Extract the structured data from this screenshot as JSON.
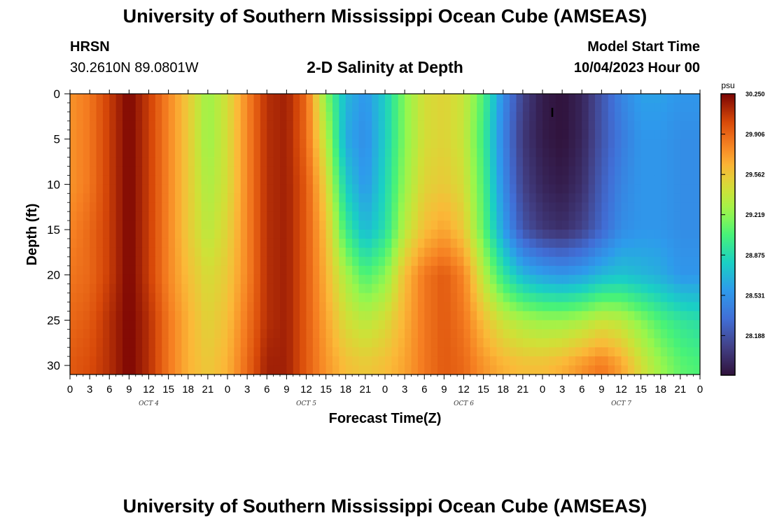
{
  "header": {
    "title": "University of Southern Mississippi Ocean Cube (AMSEAS)",
    "station": "HRSN",
    "coords": "30.2610N  89.0801W",
    "subtitle": "2-D Salinity at Depth",
    "start_label": "Model Start Time",
    "start_value": "10/04/2023 Hour 00"
  },
  "footer": {
    "title": "University of Southern Mississippi Ocean Cube (AMSEAS)"
  },
  "chart_data": {
    "type": "heatmap",
    "title": "2-D Salinity at Depth",
    "xlabel": "Forecast Time(Z)",
    "ylabel": "Depth (ft)",
    "xlim": [
      0,
      96
    ],
    "ylim": [
      0,
      31
    ],
    "x_ticks": [
      {
        "hour": 0,
        "label": "0"
      },
      {
        "hour": 3,
        "label": "3"
      },
      {
        "hour": 6,
        "label": "6"
      },
      {
        "hour": 9,
        "label": "9"
      },
      {
        "hour": 12,
        "label": "12"
      },
      {
        "hour": 15,
        "label": "15"
      },
      {
        "hour": 18,
        "label": "18"
      },
      {
        "hour": 21,
        "label": "21"
      },
      {
        "hour": 24,
        "label": "0"
      },
      {
        "hour": 27,
        "label": "3"
      },
      {
        "hour": 30,
        "label": "6"
      },
      {
        "hour": 33,
        "label": "9"
      },
      {
        "hour": 36,
        "label": "12"
      },
      {
        "hour": 39,
        "label": "15"
      },
      {
        "hour": 42,
        "label": "18"
      },
      {
        "hour": 45,
        "label": "21"
      },
      {
        "hour": 48,
        "label": "0"
      },
      {
        "hour": 51,
        "label": "3"
      },
      {
        "hour": 54,
        "label": "6"
      },
      {
        "hour": 57,
        "label": "9"
      },
      {
        "hour": 60,
        "label": "12"
      },
      {
        "hour": 63,
        "label": "15"
      },
      {
        "hour": 66,
        "label": "18"
      },
      {
        "hour": 69,
        "label": "21"
      },
      {
        "hour": 72,
        "label": "0"
      },
      {
        "hour": 75,
        "label": "3"
      },
      {
        "hour": 78,
        "label": "6"
      },
      {
        "hour": 81,
        "label": "9"
      },
      {
        "hour": 84,
        "label": "12"
      },
      {
        "hour": 87,
        "label": "15"
      },
      {
        "hour": 90,
        "label": "18"
      },
      {
        "hour": 93,
        "label": "21"
      },
      {
        "hour": 96,
        "label": "0"
      }
    ],
    "date_labels": [
      {
        "hour": 12,
        "label": "OCT 4"
      },
      {
        "hour": 36,
        "label": "OCT 5"
      },
      {
        "hour": 60,
        "label": "OCT 6"
      },
      {
        "hour": 84,
        "label": "OCT 7"
      }
    ],
    "y_ticks": [
      0,
      5,
      10,
      15,
      20,
      25,
      30
    ],
    "colorbar": {
      "unit": "psu",
      "min": 27.85,
      "max": 30.25,
      "ticks": [
        "30.250",
        "29.906",
        "29.562",
        "29.219",
        "28.875",
        "28.531",
        "28.188"
      ]
    },
    "marker": {
      "hour": 73.5,
      "depth": 2,
      "label": "I"
    },
    "rows_depth_ft": [
      0,
      5,
      10,
      15,
      20,
      25,
      30
    ],
    "columns_hour": [
      0,
      3,
      6,
      9,
      12,
      15,
      18,
      21,
      24,
      27,
      30,
      33,
      36,
      39,
      42,
      45,
      48,
      51,
      54,
      57,
      60,
      63,
      66,
      69,
      72,
      75,
      78,
      81,
      84,
      87,
      90,
      93,
      96
    ],
    "values": [
      [
        29.75,
        29.85,
        30.05,
        30.25,
        30.05,
        29.8,
        29.55,
        29.25,
        29.45,
        29.8,
        30.1,
        30.15,
        29.9,
        29.2,
        28.7,
        28.55,
        28.8,
        29.2,
        29.45,
        29.5,
        29.4,
        29.05,
        28.5,
        28.1,
        27.9,
        27.85,
        27.95,
        28.2,
        28.45,
        28.6,
        28.6,
        28.55,
        28.55
      ],
      [
        29.75,
        29.85,
        30.05,
        30.25,
        30.05,
        29.8,
        29.55,
        29.25,
        29.45,
        29.8,
        30.1,
        30.15,
        29.9,
        29.35,
        28.65,
        28.5,
        28.8,
        29.2,
        29.45,
        29.5,
        29.4,
        29.0,
        28.45,
        28.05,
        27.9,
        27.85,
        27.95,
        28.2,
        28.4,
        28.55,
        28.55,
        28.5,
        28.5
      ],
      [
        29.75,
        29.85,
        30.05,
        30.25,
        30.05,
        29.8,
        29.55,
        29.3,
        29.45,
        29.8,
        30.1,
        30.15,
        29.95,
        29.5,
        28.8,
        28.55,
        28.85,
        29.25,
        29.5,
        29.55,
        29.45,
        29.05,
        28.5,
        28.1,
        27.95,
        27.9,
        28.0,
        28.25,
        28.45,
        28.55,
        28.55,
        28.5,
        28.5
      ],
      [
        29.8,
        29.9,
        30.05,
        30.25,
        30.05,
        29.8,
        29.55,
        29.35,
        29.5,
        29.8,
        30.1,
        30.15,
        29.95,
        29.6,
        29.0,
        28.7,
        28.9,
        29.35,
        29.6,
        29.7,
        29.55,
        29.1,
        28.6,
        28.2,
        28.05,
        28.0,
        28.1,
        28.3,
        28.5,
        28.55,
        28.55,
        28.5,
        28.5
      ],
      [
        29.85,
        29.9,
        30.05,
        30.25,
        30.05,
        29.8,
        29.6,
        29.45,
        29.55,
        29.8,
        30.1,
        30.15,
        29.95,
        29.65,
        29.3,
        29.05,
        29.2,
        29.6,
        29.85,
        29.95,
        29.8,
        29.35,
        28.95,
        28.7,
        28.6,
        28.55,
        28.6,
        28.7,
        28.75,
        28.7,
        28.65,
        28.55,
        28.55
      ],
      [
        29.9,
        29.95,
        30.1,
        30.25,
        30.1,
        29.85,
        29.65,
        29.5,
        29.6,
        29.85,
        30.1,
        30.15,
        29.95,
        29.7,
        29.45,
        29.35,
        29.45,
        29.65,
        29.85,
        29.95,
        29.85,
        29.6,
        29.4,
        29.3,
        29.25,
        29.25,
        29.3,
        29.4,
        29.35,
        29.2,
        29.05,
        28.95,
        28.9
      ],
      [
        29.95,
        30.0,
        30.1,
        30.25,
        30.1,
        29.85,
        29.65,
        29.55,
        29.65,
        29.9,
        30.15,
        30.15,
        29.95,
        29.75,
        29.6,
        29.55,
        29.6,
        29.7,
        29.85,
        29.95,
        29.9,
        29.75,
        29.65,
        29.6,
        29.6,
        29.65,
        29.75,
        29.85,
        29.7,
        29.45,
        29.25,
        29.1,
        29.05
      ]
    ]
  }
}
